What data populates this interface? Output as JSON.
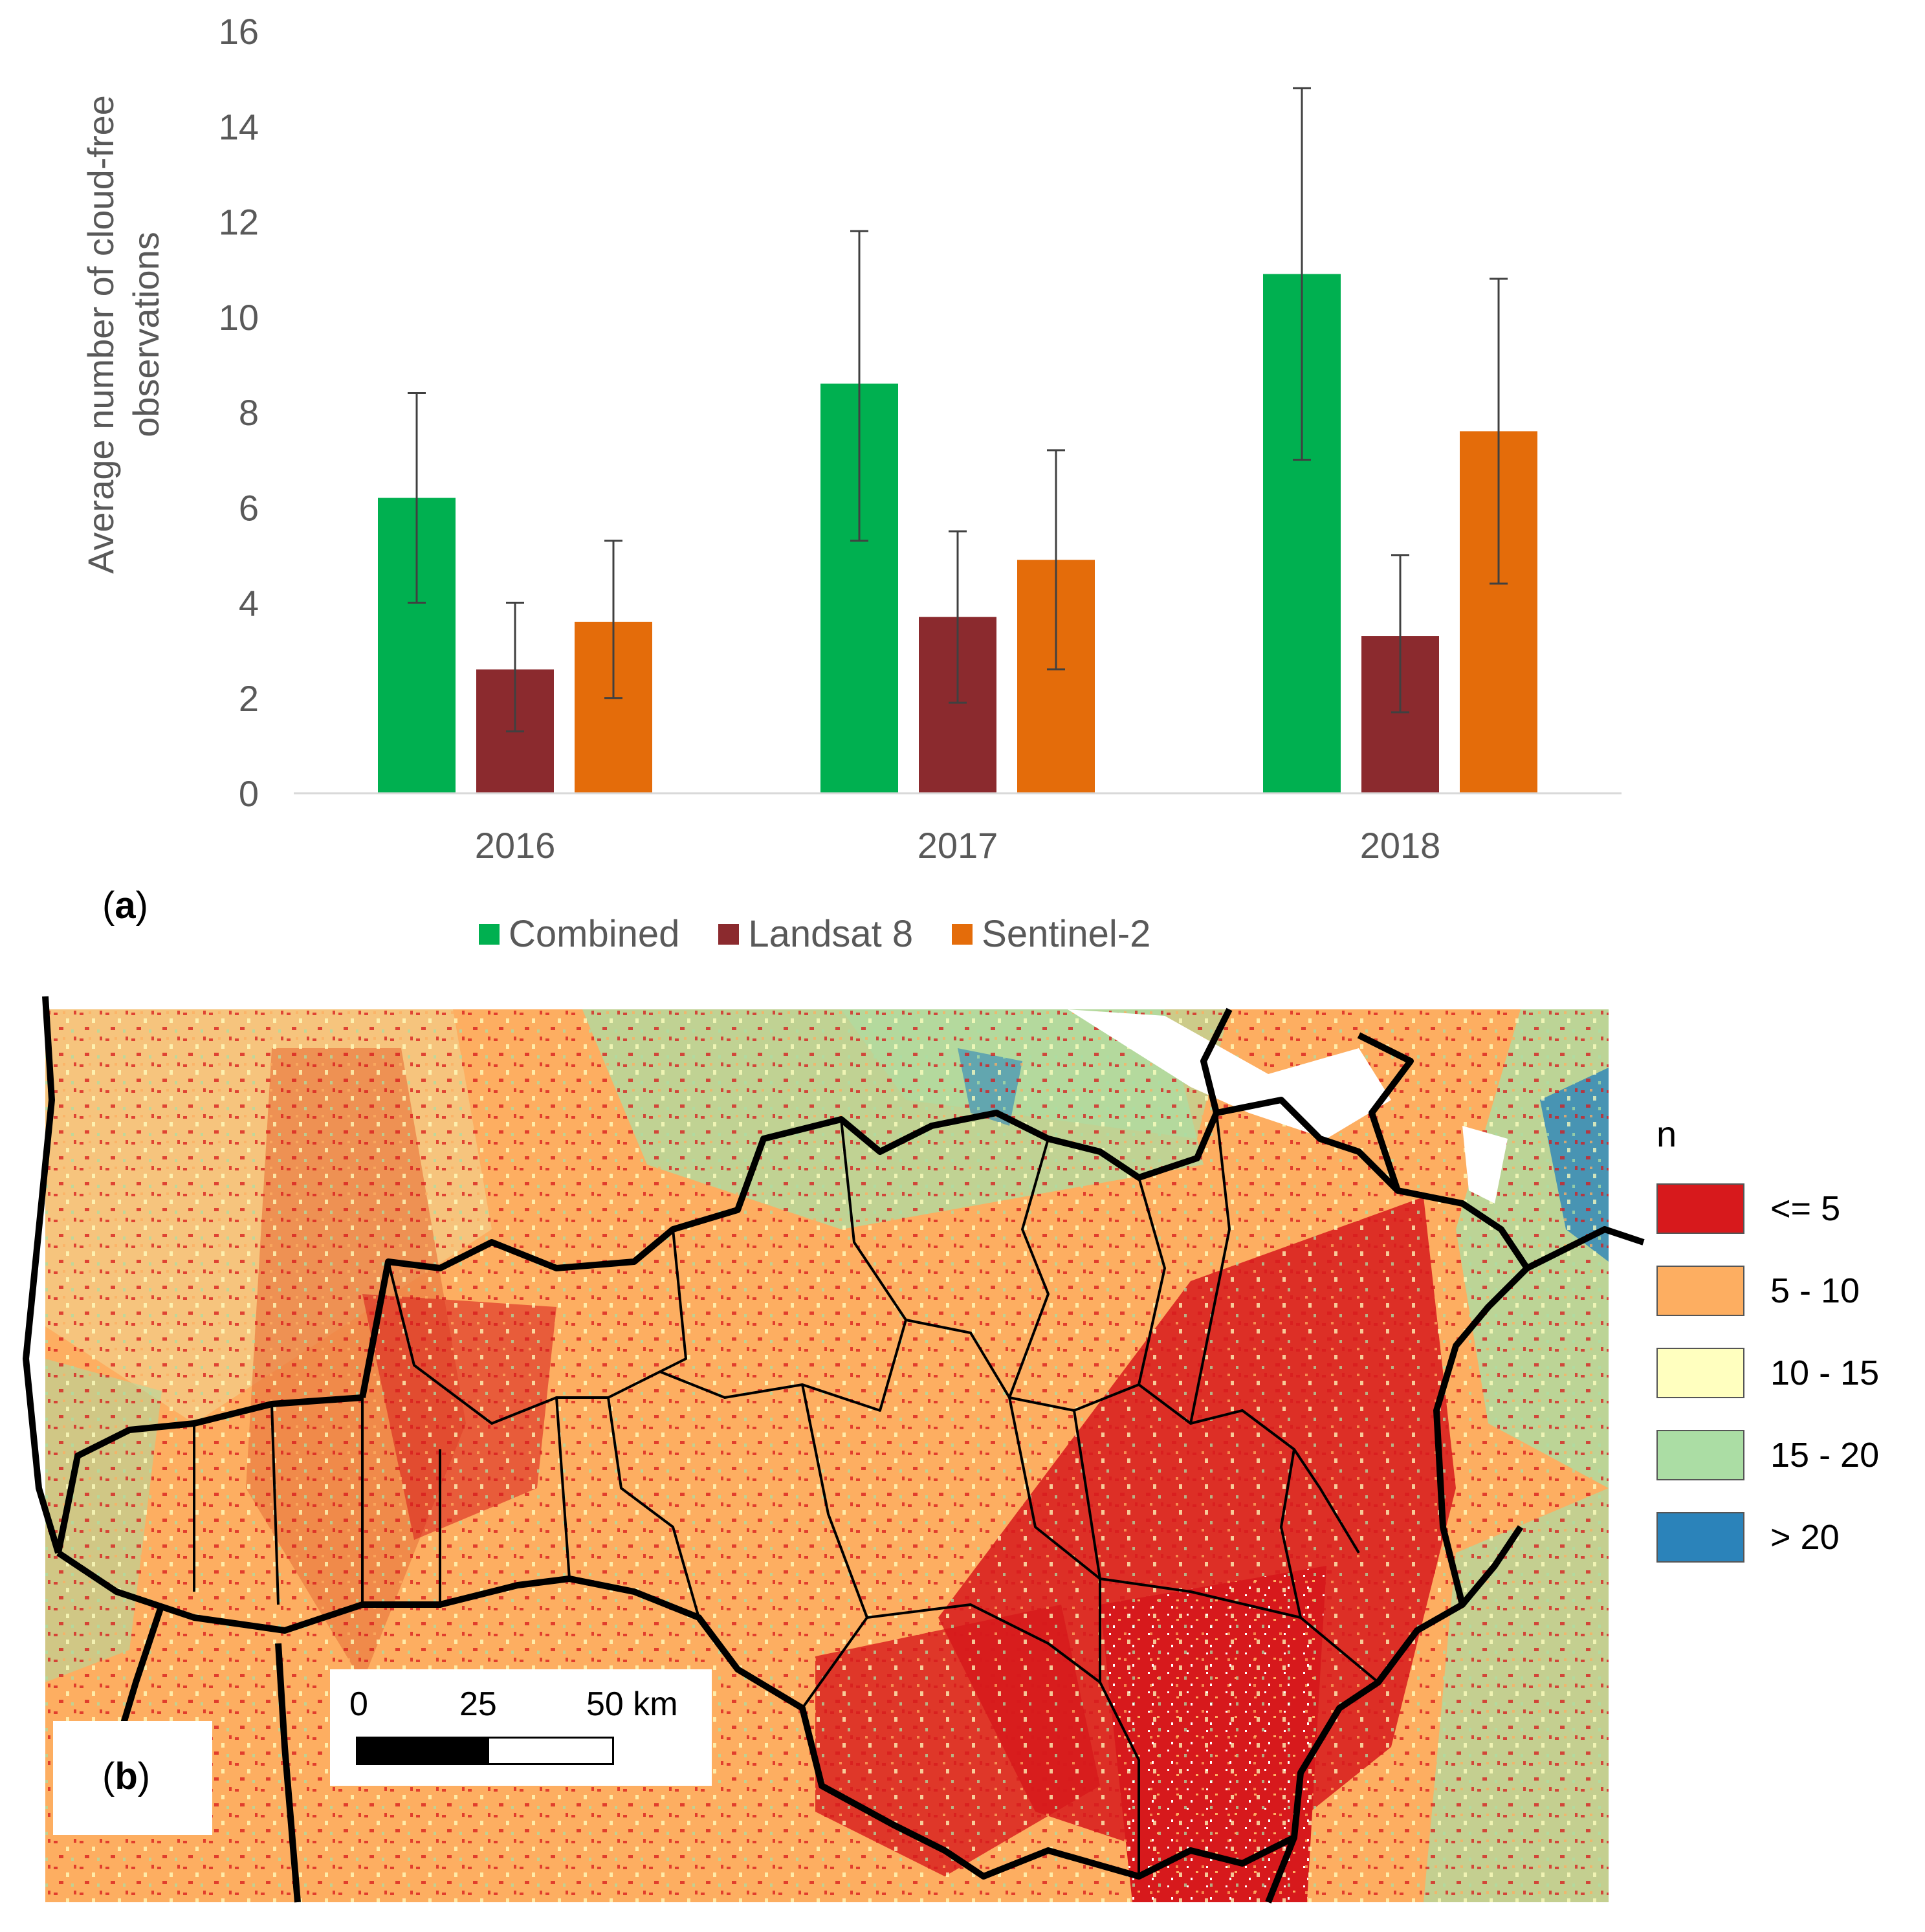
{
  "chart_data": {
    "type": "bar",
    "panel_label": "a",
    "categories": [
      "2016",
      "2017",
      "2018"
    ],
    "series": [
      {
        "name": "Combined",
        "color": "#00b050",
        "values": [
          6.2,
          8.6,
          10.9
        ],
        "error_low": [
          4.0,
          5.3,
          7.0
        ],
        "error_high": [
          8.4,
          11.8,
          14.8
        ]
      },
      {
        "name": "Landsat 8",
        "color": "#8b2a2e",
        "values": [
          2.6,
          3.7,
          3.3
        ],
        "error_low": [
          1.3,
          1.9,
          1.7
        ],
        "error_high": [
          4.0,
          5.5,
          5.0
        ]
      },
      {
        "name": "Sentinel-2",
        "color": "#e46c0a",
        "values": [
          3.6,
          4.9,
          7.6
        ],
        "error_low": [
          2.0,
          2.6,
          4.4
        ],
        "error_high": [
          5.3,
          7.2,
          10.8
        ]
      }
    ],
    "ylabel": "Average number of cloud-free observations",
    "xlabel": "",
    "ylim": [
      0,
      16
    ],
    "yticks": [
      0,
      2,
      4,
      6,
      8,
      10,
      12,
      14,
      16
    ],
    "legend_position": "bottom-center"
  },
  "map": {
    "panel_label": "b",
    "legend": {
      "title": "n",
      "classes": [
        {
          "label": "<= 5",
          "color": "#d7191c"
        },
        {
          "label": "5 - 10",
          "color": "#fdae61"
        },
        {
          "label": "10 - 15",
          "color": "#ffffbf"
        },
        {
          "label": "15 - 20",
          "color": "#abdda4"
        },
        {
          "label": "> 20",
          "color": "#2b83ba"
        }
      ]
    },
    "scalebar": {
      "ticks": [
        "0",
        "25",
        "50 km"
      ]
    }
  }
}
